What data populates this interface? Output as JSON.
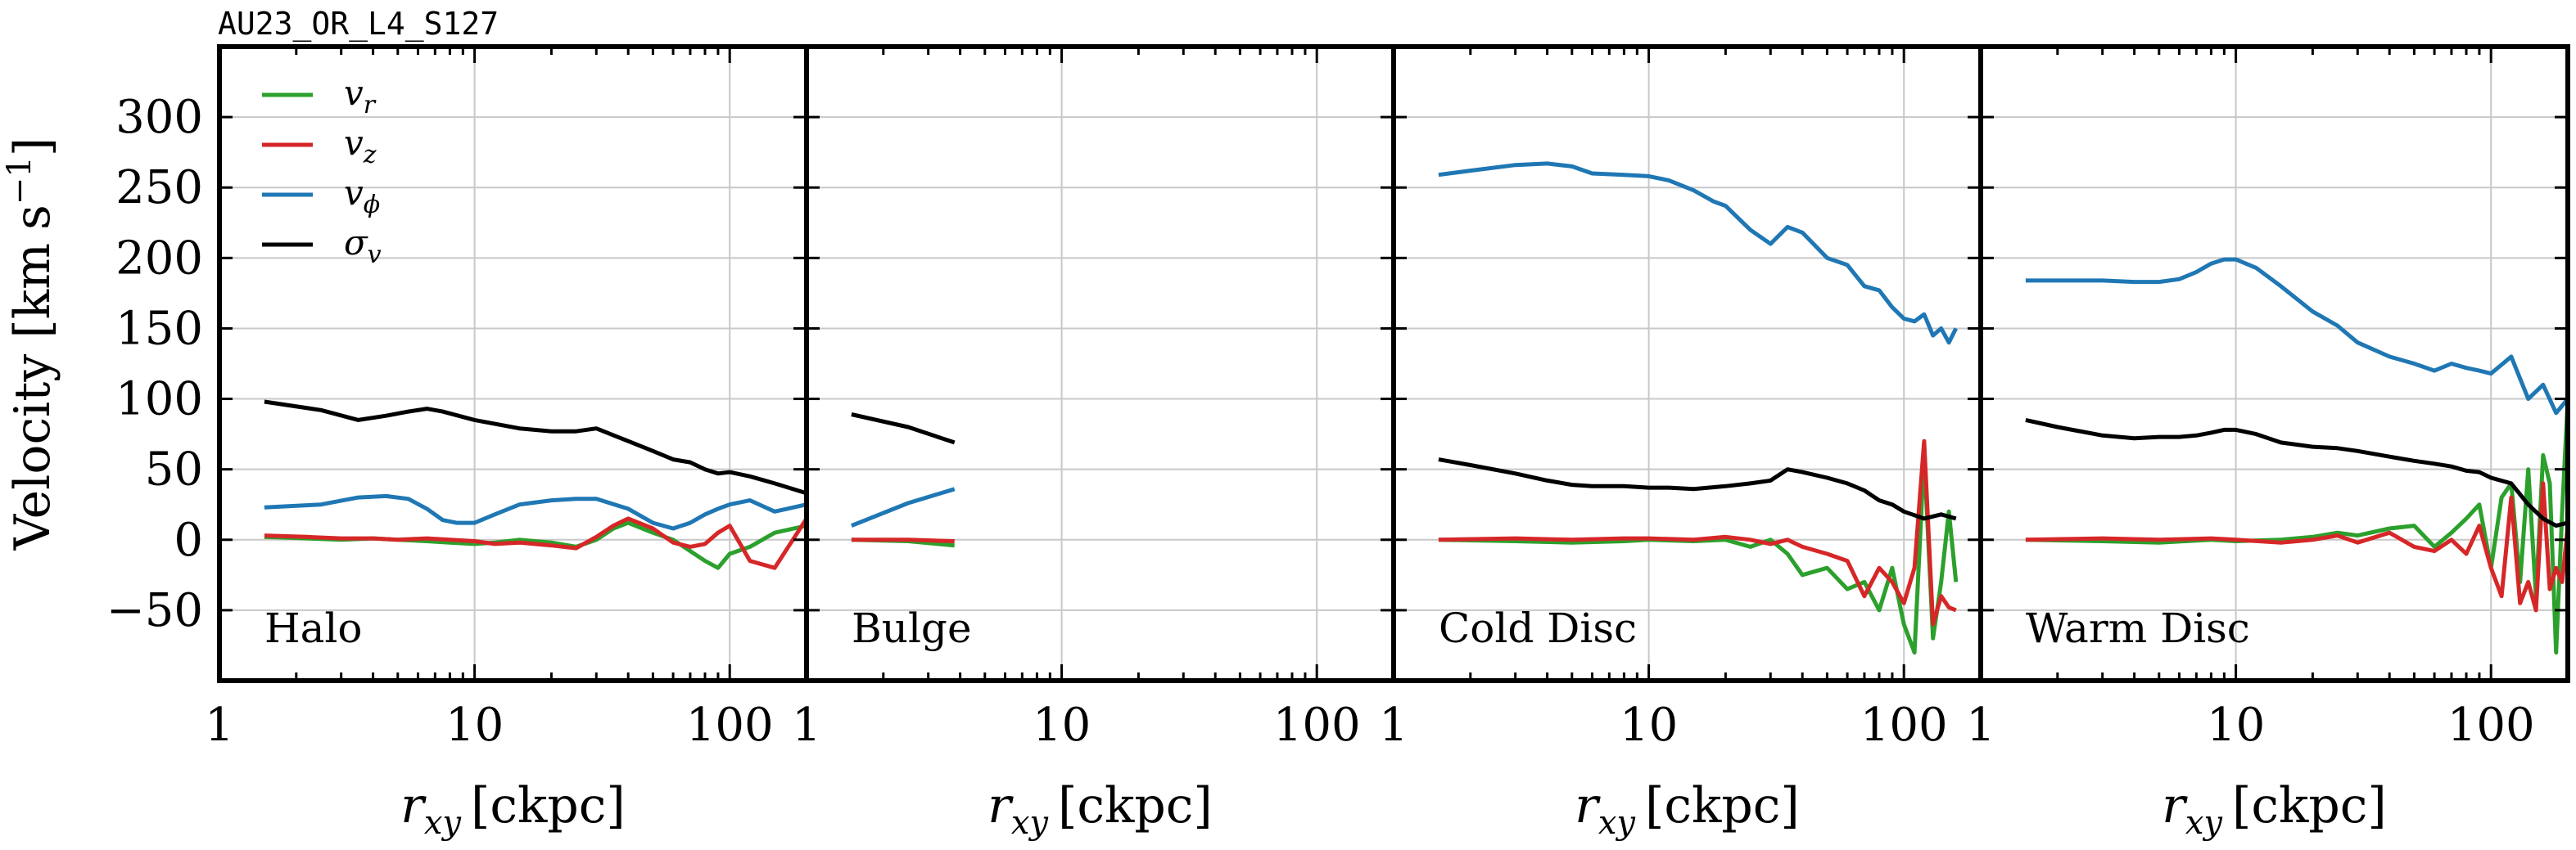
{
  "figure_title": "AU23_OR_L4_S127",
  "colors": {
    "v_r": "#2ca02c",
    "v_z": "#d62728",
    "v_phi": "#1f77b4",
    "sigma_v": "#000000",
    "grid": "#c8c8c8",
    "axis": "#000000"
  },
  "chart_data": [
    {
      "type": "line",
      "title": "Halo",
      "xlabel": "r_xy [ckpc]",
      "ylabel": "Velocity [km s^-1]",
      "xscale": "log",
      "xlim": [
        1,
        200
      ],
      "ylim": [
        -100,
        350
      ],
      "xticks": [
        1,
        10,
        100
      ],
      "yticks": [
        -50,
        0,
        50,
        100,
        150,
        200,
        250,
        300
      ],
      "grid": true,
      "legend": [
        "v_r",
        "v_z",
        "v_phi",
        "sigma_v"
      ],
      "legend_position": "top-left",
      "series": [
        {
          "name": "v_r",
          "x": [
            1.5,
            2.2,
            3,
            4,
            5,
            6.5,
            8,
            10,
            12,
            15,
            20,
            25,
            30,
            35,
            40,
            50,
            60,
            70,
            80,
            90,
            100,
            120,
            150,
            200
          ],
          "y": [
            2,
            1,
            0,
            1,
            0,
            -1,
            -2,
            -3,
            -2,
            0,
            -2,
            -5,
            0,
            8,
            12,
            5,
            0,
            -8,
            -15,
            -20,
            -10,
            -5,
            5,
            10
          ]
        },
        {
          "name": "v_z",
          "x": [
            1.5,
            2.2,
            3,
            4,
            5,
            6.5,
            8,
            10,
            12,
            15,
            20,
            25,
            30,
            35,
            40,
            50,
            60,
            70,
            80,
            90,
            100,
            120,
            150,
            200
          ],
          "y": [
            3,
            2,
            1,
            1,
            0,
            1,
            0,
            -1,
            -3,
            -2,
            -4,
            -6,
            2,
            10,
            15,
            8,
            -2,
            -5,
            -3,
            5,
            10,
            -15,
            -20,
            15
          ]
        },
        {
          "name": "v_phi",
          "x": [
            1.5,
            2.5,
            3.5,
            4.5,
            5.5,
            6.5,
            7.5,
            8.5,
            10,
            12,
            15,
            20,
            25,
            30,
            40,
            50,
            60,
            70,
            80,
            90,
            100,
            120,
            150,
            200
          ],
          "y": [
            23,
            25,
            30,
            31,
            29,
            22,
            14,
            12,
            12,
            18,
            25,
            28,
            29,
            29,
            22,
            12,
            8,
            12,
            18,
            22,
            25,
            28,
            20,
            25
          ]
        },
        {
          "name": "sigma_v",
          "x": [
            1.5,
            2.5,
            3.5,
            4.5,
            5.5,
            6.5,
            7.5,
            10,
            15,
            20,
            25,
            30,
            40,
            50,
            60,
            70,
            80,
            90,
            100,
            120,
            150,
            200
          ],
          "y": [
            98,
            92,
            85,
            88,
            91,
            93,
            91,
            85,
            79,
            77,
            77,
            79,
            70,
            63,
            57,
            55,
            50,
            47,
            48,
            45,
            40,
            33
          ]
        }
      ],
      "annotation": "Halo"
    },
    {
      "type": "line",
      "title": "Bulge",
      "xlabel": "r_xy [ckpc]",
      "xscale": "log",
      "xlim": [
        1,
        200
      ],
      "ylim": [
        -100,
        350
      ],
      "xticks": [
        1,
        10,
        100
      ],
      "grid": true,
      "series": [
        {
          "name": "v_r",
          "x": [
            1.5,
            2.5,
            3.8
          ],
          "y": [
            0,
            -1,
            -4
          ]
        },
        {
          "name": "v_z",
          "x": [
            1.5,
            2.5,
            3.8
          ],
          "y": [
            0,
            0,
            -1
          ]
        },
        {
          "name": "v_phi",
          "x": [
            1.5,
            2.5,
            3.8
          ],
          "y": [
            10,
            26,
            36
          ]
        },
        {
          "name": "sigma_v",
          "x": [
            1.5,
            2.5,
            3.8
          ],
          "y": [
            89,
            80,
            69
          ]
        }
      ],
      "annotation": "Bulge"
    },
    {
      "type": "line",
      "title": "Cold Disc",
      "xlabel": "r_xy [ckpc]",
      "xscale": "log",
      "xlim": [
        1,
        200
      ],
      "ylim": [
        -100,
        350
      ],
      "xticks": [
        1,
        10,
        100
      ],
      "grid": true,
      "series": [
        {
          "name": "v_r",
          "x": [
            1.5,
            3,
            5,
            8,
            10,
            15,
            20,
            25,
            30,
            35,
            40,
            50,
            60,
            70,
            80,
            90,
            100,
            110,
            120,
            130,
            140,
            150,
            160
          ],
          "y": [
            0,
            -1,
            -2,
            -1,
            0,
            -1,
            0,
            -5,
            0,
            -10,
            -25,
            -20,
            -35,
            -30,
            -50,
            -20,
            -60,
            -80,
            60,
            -70,
            -30,
            20,
            -30
          ]
        },
        {
          "name": "v_z",
          "x": [
            1.5,
            3,
            5,
            8,
            10,
            15,
            20,
            25,
            30,
            35,
            40,
            50,
            60,
            70,
            80,
            90,
            100,
            110,
            120,
            130,
            140,
            150,
            160
          ],
          "y": [
            0,
            1,
            0,
            1,
            1,
            0,
            2,
            0,
            -3,
            0,
            -5,
            -10,
            -15,
            -40,
            -20,
            -30,
            -45,
            -20,
            70,
            -60,
            -40,
            -48,
            -50
          ]
        },
        {
          "name": "v_phi",
          "x": [
            1.5,
            2,
            3,
            4,
            5,
            6,
            8,
            10,
            12,
            15,
            18,
            20,
            25,
            30,
            35,
            40,
            50,
            60,
            70,
            80,
            90,
            100,
            110,
            120,
            130,
            140,
            150,
            160
          ],
          "y": [
            259,
            262,
            266,
            267,
            265,
            260,
            259,
            258,
            255,
            248,
            240,
            237,
            220,
            210,
            222,
            218,
            200,
            195,
            180,
            177,
            165,
            157,
            155,
            160,
            145,
            150,
            140,
            150
          ]
        },
        {
          "name": "sigma_v",
          "x": [
            1.5,
            2,
            3,
            4,
            5,
            6,
            8,
            10,
            12,
            15,
            20,
            25,
            30,
            35,
            40,
            50,
            60,
            70,
            80,
            90,
            100,
            120,
            140,
            160
          ],
          "y": [
            57,
            53,
            47,
            42,
            39,
            38,
            38,
            37,
            37,
            36,
            38,
            40,
            42,
            50,
            48,
            44,
            40,
            35,
            28,
            25,
            20,
            15,
            18,
            15
          ]
        }
      ],
      "annotation": "Cold Disc"
    },
    {
      "type": "line",
      "title": "Warm Disc",
      "xlabel": "r_xy [ckpc]",
      "xscale": "log",
      "xlim": [
        1,
        200
      ],
      "ylim": [
        -100,
        350
      ],
      "xticks": [
        1,
        10,
        100
      ],
      "grid": true,
      "series": [
        {
          "name": "v_r",
          "x": [
            1.5,
            3,
            5,
            8,
            10,
            15,
            20,
            25,
            30,
            40,
            50,
            60,
            70,
            80,
            90,
            100,
            110,
            120,
            130,
            140,
            150,
            160,
            170,
            180,
            190,
            200
          ],
          "y": [
            0,
            -1,
            -2,
            0,
            -1,
            0,
            2,
            5,
            3,
            8,
            10,
            -5,
            5,
            15,
            25,
            -20,
            30,
            40,
            -30,
            50,
            -40,
            60,
            40,
            -80,
            20,
            100
          ]
        },
        {
          "name": "v_z",
          "x": [
            1.5,
            3,
            5,
            8,
            10,
            15,
            20,
            25,
            30,
            40,
            50,
            60,
            70,
            80,
            90,
            100,
            110,
            120,
            130,
            140,
            150,
            160,
            170,
            180,
            190,
            200
          ],
          "y": [
            0,
            1,
            0,
            1,
            0,
            -2,
            0,
            3,
            -2,
            5,
            -5,
            -8,
            0,
            -10,
            10,
            -20,
            -40,
            30,
            -45,
            -30,
            -50,
            40,
            -35,
            -20,
            -30,
            10
          ]
        },
        {
          "name": "v_phi",
          "x": [
            1.5,
            2,
            3,
            4,
            5,
            6,
            7,
            8,
            9,
            10,
            12,
            15,
            20,
            25,
            30,
            40,
            50,
            60,
            70,
            80,
            90,
            100,
            120,
            140,
            160,
            180,
            200
          ],
          "y": [
            184,
            184,
            184,
            183,
            183,
            185,
            190,
            196,
            199,
            199,
            193,
            180,
            162,
            152,
            140,
            130,
            125,
            120,
            125,
            122,
            120,
            118,
            130,
            100,
            110,
            90,
            100
          ]
        },
        {
          "name": "sigma_v",
          "x": [
            1.5,
            2,
            3,
            4,
            5,
            6,
            7,
            8,
            9,
            10,
            12,
            15,
            20,
            25,
            30,
            40,
            50,
            60,
            70,
            80,
            90,
            100,
            120,
            140,
            160,
            180,
            200
          ],
          "y": [
            85,
            80,
            74,
            72,
            73,
            73,
            74,
            76,
            78,
            78,
            75,
            69,
            66,
            65,
            63,
            59,
            56,
            54,
            52,
            49,
            48,
            44,
            40,
            25,
            15,
            10,
            12
          ]
        }
      ],
      "annotation": "Warm Disc"
    }
  ]
}
